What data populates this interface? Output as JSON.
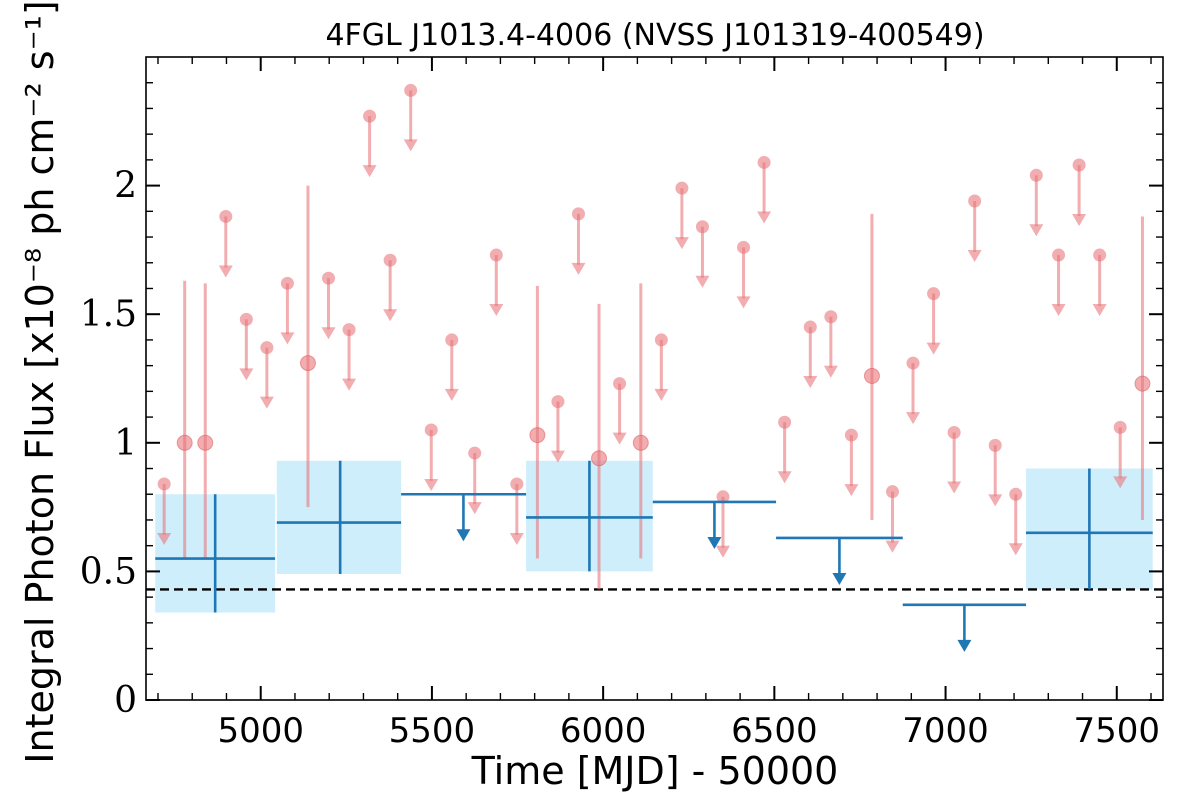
{
  "chart_data": {
    "type": "scatter",
    "title": "4FGL J1013.4-4006 (NVSS J101319-400549)",
    "xlabel": "Time [MJD] - 50000",
    "ylabel": "Integral Photon Flux [x10⁻⁸ ph cm⁻² s⁻¹]",
    "xlim": [
      4665,
      7635
    ],
    "ylim": [
      0,
      2.5
    ],
    "x_ticks": [
      {
        "value": 5000,
        "label": "5000"
      },
      {
        "value": 5500,
        "label": "5500"
      },
      {
        "value": 6000,
        "label": "6000"
      },
      {
        "value": 6500,
        "label": "6500"
      },
      {
        "value": 7000,
        "label": "7000"
      },
      {
        "value": 7500,
        "label": "7500"
      }
    ],
    "y_ticks": [
      {
        "value": 0,
        "label": "0"
      },
      {
        "value": 0.5,
        "label": "0.5"
      },
      {
        "value": 1,
        "label": "1"
      },
      {
        "value": 1.5,
        "label": "1.5"
      },
      {
        "value": 2,
        "label": "2"
      }
    ],
    "grid": false,
    "reference_line": {
      "y": 0.43,
      "style": "dashed",
      "color": "#000000"
    },
    "colors": {
      "fine_series": "#e8777b",
      "coarse_series": "#1f77b4",
      "coarse_band": "#cfeefc"
    },
    "fine_bin_detections": [
      {
        "x": 4778,
        "y": 1.0,
        "yerr_low": 0.55,
        "yerr_high": 1.63
      },
      {
        "x": 4838,
        "y": 1.0,
        "yerr_low": 0.55,
        "yerr_high": 1.62
      },
      {
        "x": 5138,
        "y": 1.31,
        "yerr_low": 0.75,
        "yerr_high": 2.0
      },
      {
        "x": 5808,
        "y": 1.03,
        "yerr_low": 0.55,
        "yerr_high": 1.61
      },
      {
        "x": 5988,
        "y": 0.94,
        "yerr_low": 0.43,
        "yerr_high": 1.54
      },
      {
        "x": 6110,
        "y": 1.0,
        "yerr_low": 0.55,
        "yerr_high": 1.62
      },
      {
        "x": 6785,
        "y": 1.26,
        "yerr_low": 0.7,
        "yerr_high": 1.89
      },
      {
        "x": 7575,
        "y": 1.23,
        "yerr_low": 0.7,
        "yerr_high": 1.88
      }
    ],
    "fine_bin_upper_limits": [
      {
        "x": 4718,
        "y": 0.84
      },
      {
        "x": 4898,
        "y": 1.88
      },
      {
        "x": 4958,
        "y": 1.48
      },
      {
        "x": 5018,
        "y": 1.37
      },
      {
        "x": 5078,
        "y": 1.62
      },
      {
        "x": 5198,
        "y": 1.64
      },
      {
        "x": 5258,
        "y": 1.44
      },
      {
        "x": 5318,
        "y": 2.27
      },
      {
        "x": 5378,
        "y": 1.71
      },
      {
        "x": 5438,
        "y": 2.37
      },
      {
        "x": 5498,
        "y": 1.05
      },
      {
        "x": 5558,
        "y": 1.4
      },
      {
        "x": 5625,
        "y": 0.96
      },
      {
        "x": 5688,
        "y": 1.73
      },
      {
        "x": 5748,
        "y": 0.84
      },
      {
        "x": 5868,
        "y": 1.16
      },
      {
        "x": 5928,
        "y": 1.89
      },
      {
        "x": 6048,
        "y": 1.23
      },
      {
        "x": 6170,
        "y": 1.4
      },
      {
        "x": 6230,
        "y": 1.99
      },
      {
        "x": 6290,
        "y": 1.84
      },
      {
        "x": 6350,
        "y": 0.79
      },
      {
        "x": 6410,
        "y": 1.76
      },
      {
        "x": 6470,
        "y": 2.09
      },
      {
        "x": 6530,
        "y": 1.08
      },
      {
        "x": 6605,
        "y": 1.45
      },
      {
        "x": 6665,
        "y": 1.49
      },
      {
        "x": 6725,
        "y": 1.03
      },
      {
        "x": 6845,
        "y": 0.81
      },
      {
        "x": 6905,
        "y": 1.31
      },
      {
        "x": 6965,
        "y": 1.58
      },
      {
        "x": 7025,
        "y": 1.04
      },
      {
        "x": 7085,
        "y": 1.94
      },
      {
        "x": 7145,
        "y": 0.99
      },
      {
        "x": 7205,
        "y": 0.8
      },
      {
        "x": 7265,
        "y": 2.04
      },
      {
        "x": 7330,
        "y": 1.73
      },
      {
        "x": 7390,
        "y": 2.08
      },
      {
        "x": 7450,
        "y": 1.73
      },
      {
        "x": 7510,
        "y": 1.06
      }
    ],
    "coarse_bin_detections": [
      {
        "x": 4867,
        "x_lo": 4692,
        "x_hi": 5042,
        "y": 0.55,
        "y_lo": 0.34,
        "y_hi": 0.8
      },
      {
        "x": 5232,
        "x_lo": 5047,
        "x_hi": 5410,
        "y": 0.69,
        "y_lo": 0.49,
        "y_hi": 0.93
      },
      {
        "x": 5960,
        "x_lo": 5775,
        "x_hi": 6145,
        "y": 0.71,
        "y_lo": 0.5,
        "y_hi": 0.93
      },
      {
        "x": 7420,
        "x_lo": 7235,
        "x_hi": 7605,
        "y": 0.65,
        "y_lo": 0.43,
        "y_hi": 0.9
      }
    ],
    "coarse_bin_upper_limits": [
      {
        "x": 5592,
        "x_lo": 5410,
        "x_hi": 5775,
        "y": 0.8
      },
      {
        "x": 6325,
        "x_lo": 6145,
        "x_hi": 6505,
        "y": 0.77
      },
      {
        "x": 6690,
        "x_lo": 6505,
        "x_hi": 6875,
        "y": 0.63
      },
      {
        "x": 7055,
        "x_lo": 6875,
        "x_hi": 7235,
        "y": 0.37
      }
    ]
  }
}
